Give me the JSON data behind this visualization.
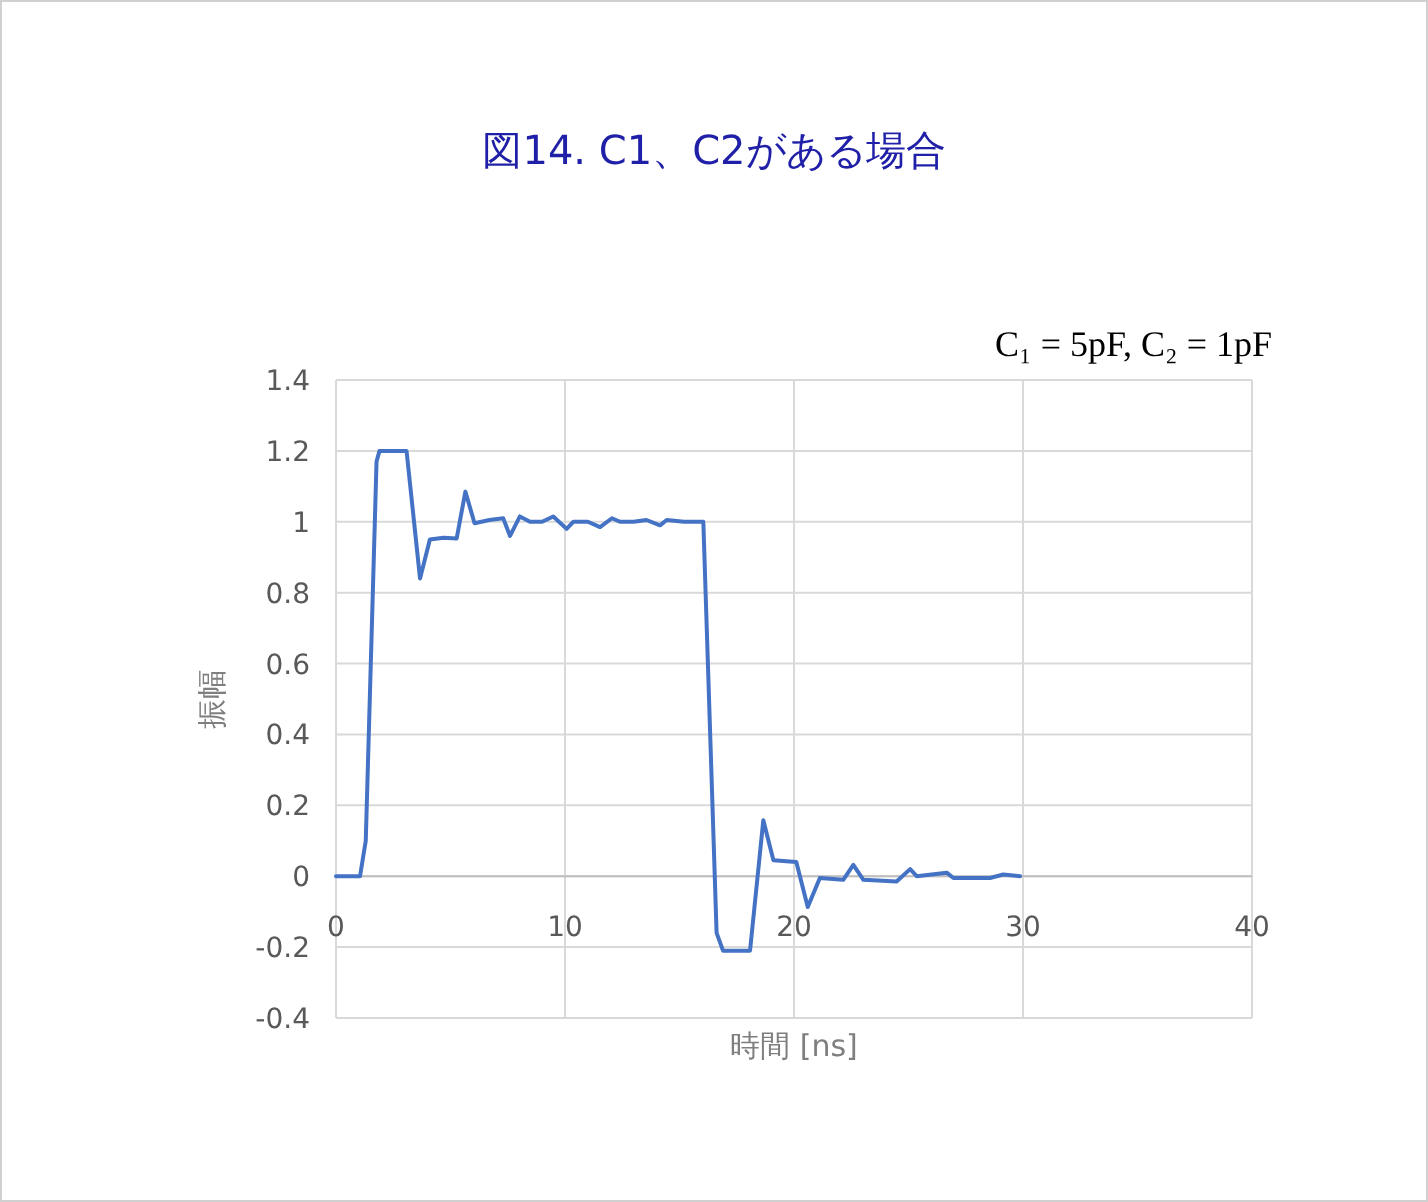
{
  "chart_data": {
    "type": "line",
    "title": "図14. C1、C2がある場合",
    "xlabel": "時間 [ns]",
    "ylabel": "振幅",
    "annotations": [
      "C₁ = 5pF, C₂ = 1pF"
    ],
    "xlim": [
      0,
      40
    ],
    "xticks": [
      0,
      10,
      20,
      30,
      40
    ],
    "ylim": [
      -0.4,
      1.4
    ],
    "yticks": [
      -0.4,
      -0.2,
      0,
      0.2,
      0.4,
      0.6,
      0.8,
      1,
      1.2,
      1.4
    ],
    "grid": true,
    "marker": "none",
    "line_style": "solid",
    "series": [
      {
        "color": "#4472c4",
        "x": [
          0,
          1.05,
          1.3,
          1.77,
          1.9,
          2.5,
          3.08,
          3.67,
          4.1,
          4.7,
          5.27,
          5.65,
          6.05,
          6.7,
          7.3,
          7.6,
          8.03,
          8.47,
          9.0,
          9.49,
          10.07,
          10.36,
          11.0,
          11.53,
          12.05,
          12.4,
          13.0,
          13.56,
          14.15,
          14.44,
          15.2,
          15.9,
          16.04,
          16.62,
          16.9,
          17.5,
          18.08,
          18.66,
          19.1,
          20.1,
          20.6,
          21.13,
          22.15,
          22.59,
          23.03,
          24.48,
          25.07,
          25.36,
          26.67,
          26.96,
          28.56,
          29.14,
          29.87
        ],
        "values": [
          0,
          0,
          0.1,
          1.17,
          1.2,
          1.2,
          1.2,
          0.84,
          0.95,
          0.955,
          0.953,
          1.085,
          0.996,
          1.005,
          1.01,
          0.96,
          1.015,
          1.0,
          1.0,
          1.015,
          0.98,
          1.0,
          1.0,
          0.985,
          1.01,
          1.0,
          1.0,
          1.005,
          0.99,
          1.005,
          1.0,
          1.0,
          1.0,
          -0.16,
          -0.21,
          -0.21,
          -0.21,
          0.158,
          0.045,
          0.04,
          -0.087,
          -0.005,
          -0.01,
          0.032,
          -0.01,
          -0.015,
          0.02,
          0,
          0.01,
          -0.005,
          -0.005,
          0.005,
          0
        ]
      }
    ]
  }
}
